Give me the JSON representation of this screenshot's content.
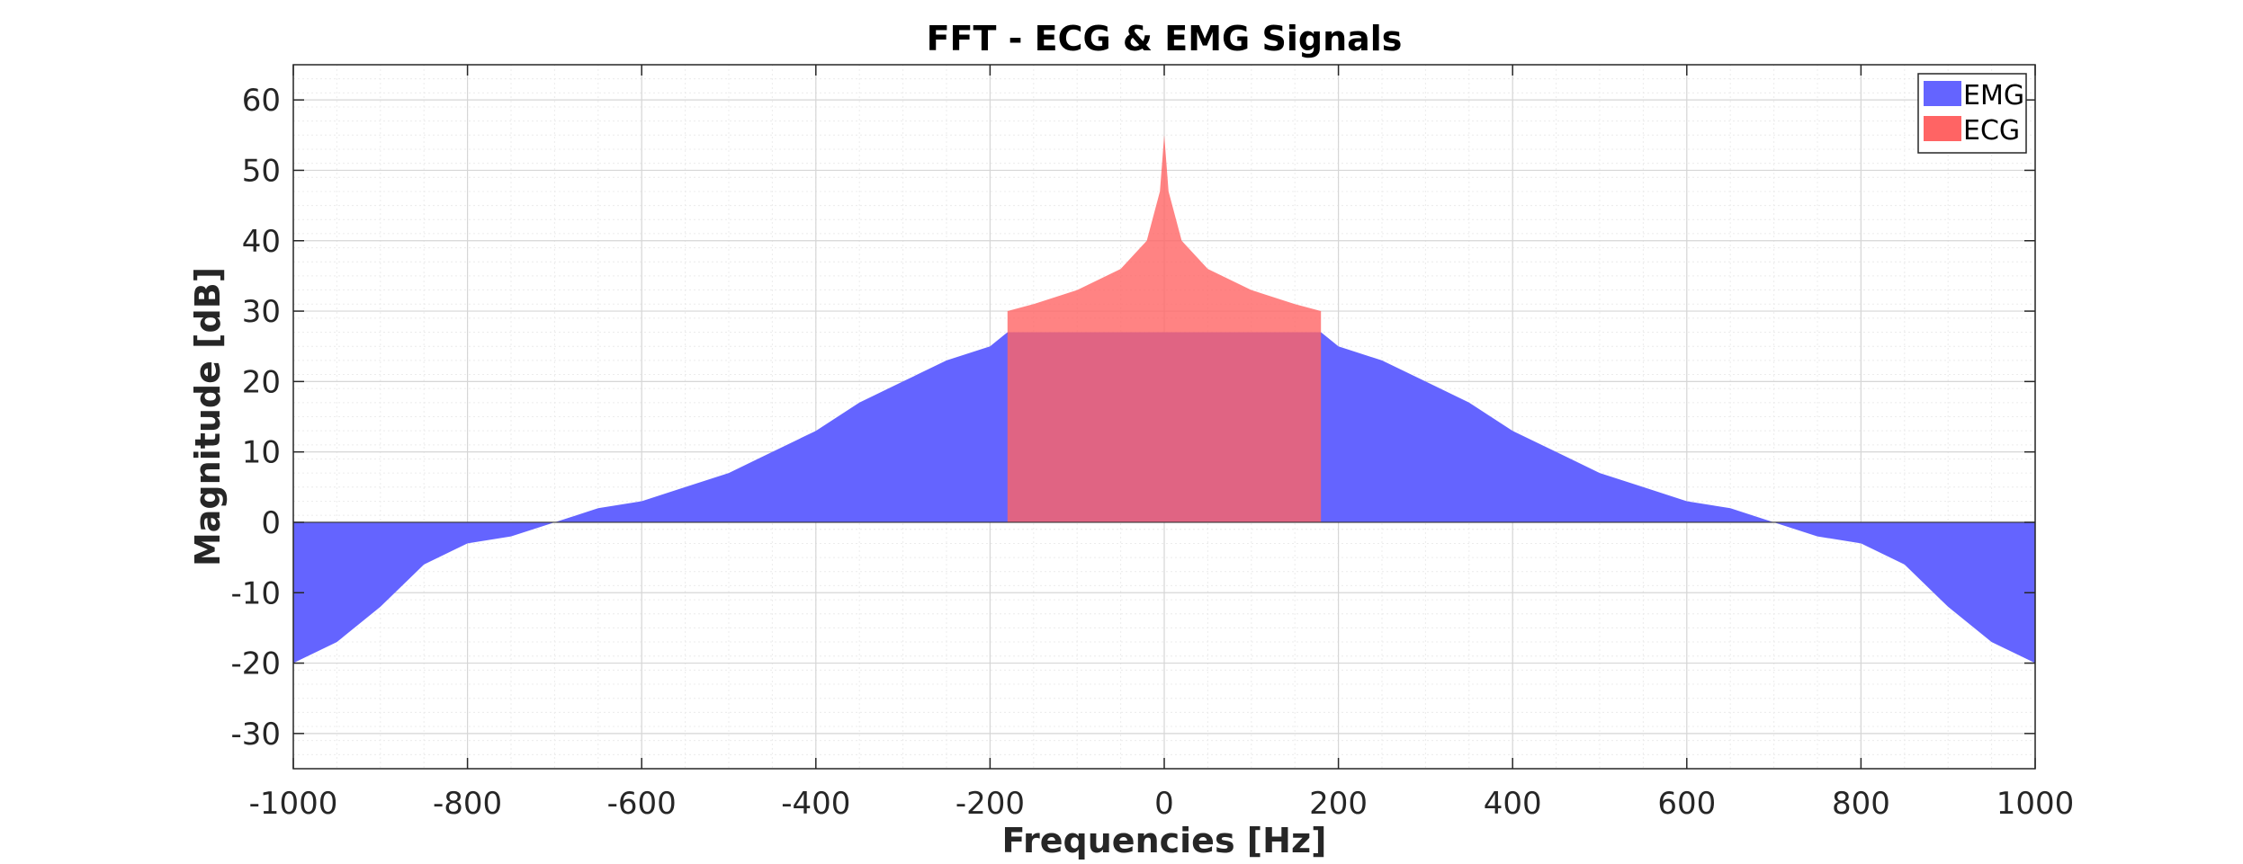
{
  "chart_data": {
    "type": "area",
    "title": "FFT - ECG & EMG Signals",
    "xlabel": "Frequencies [Hz]",
    "ylabel": "Magnitude [dB]",
    "xlim": [
      -1000,
      1000
    ],
    "ylim": [
      -35,
      65
    ],
    "xticks": [
      -1000,
      -800,
      -600,
      -400,
      -200,
      0,
      200,
      400,
      600,
      800,
      1000
    ],
    "yticks": [
      -30,
      -20,
      -10,
      0,
      10,
      20,
      30,
      40,
      50,
      60
    ],
    "grid": true,
    "minor_grid": true,
    "legend_position": "top-right",
    "series": [
      {
        "name": "EMG",
        "color": "#6464ff",
        "x": [
          -1000,
          -950,
          -900,
          -850,
          -800,
          -750,
          -700,
          -650,
          -600,
          -550,
          -500,
          -450,
          -400,
          -350,
          -300,
          -250,
          -200,
          -180,
          180,
          200,
          250,
          300,
          350,
          400,
          450,
          500,
          550,
          600,
          650,
          700,
          750,
          800,
          850,
          900,
          950,
          1000
        ],
        "values": [
          -20,
          -17,
          -12,
          -6,
          -3,
          -2,
          0,
          2,
          3,
          5,
          7,
          10,
          13,
          17,
          20,
          23,
          25,
          27,
          27,
          25,
          23,
          20,
          17,
          13,
          10,
          7,
          5,
          3,
          2,
          0,
          -2,
          -3,
          -6,
          -12,
          -17,
          -20
        ]
      },
      {
        "name": "ECG",
        "color": "#ff6464",
        "x": [
          -180,
          -150,
          -100,
          -50,
          -20,
          -5,
          0,
          5,
          20,
          50,
          100,
          150,
          180
        ],
        "values": [
          30,
          31,
          33,
          36,
          40,
          47,
          55,
          47,
          40,
          36,
          33,
          31,
          30
        ]
      }
    ]
  }
}
